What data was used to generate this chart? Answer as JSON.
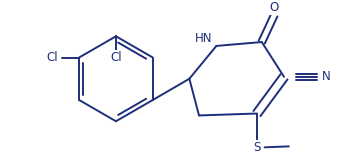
{
  "bond_color": "#1f2e7a",
  "bg_color": "#ffffff",
  "line_width": 1.4,
  "font_size": 8.5,
  "font_color": "#1f2e7a",
  "figsize": [
    3.42,
    1.55
  ],
  "dpi": 100,
  "xlim": [
    0,
    342
  ],
  "ylim": [
    0,
    155
  ]
}
